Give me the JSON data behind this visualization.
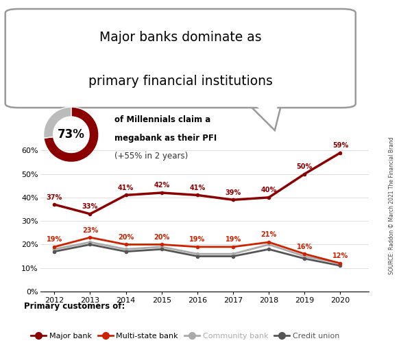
{
  "years": [
    2012,
    2013,
    2014,
    2015,
    2016,
    2017,
    2018,
    2019,
    2020
  ],
  "major_bank": [
    37,
    33,
    41,
    42,
    41,
    39,
    40,
    50,
    59
  ],
  "multi_state_bank": [
    19,
    23,
    20,
    20,
    19,
    19,
    21,
    16,
    12
  ],
  "community_bank": [
    18,
    21,
    18,
    19,
    16,
    16,
    20,
    15,
    12
  ],
  "credit_union": [
    17,
    20,
    17,
    18,
    15,
    15,
    18,
    14,
    11
  ],
  "major_bank_color": "#8B0000",
  "multi_state_bank_color": "#cc2200",
  "community_bank_color": "#aaaaaa",
  "credit_union_color": "#555555",
  "title_line1": "Major banks dominate as",
  "title_line2": "primary financial institutions",
  "pct_73_text": "73%",
  "donut_dark_color": "#8B0000",
  "donut_light_color": "#bbbbbb",
  "ann_line1": "of Millennials claim a",
  "ann_line2": "megabank as their PFI",
  "ann_line3": "(+55% in 2 years)",
  "source_text": "SOURCE: Raddon © March 2021 The Financial Brand",
  "legend_header": "Primary customers of:",
  "legend_label1": "Major bank",
  "legend_label2": "Multi-state bank",
  "legend_label3": "Community bank",
  "legend_label4": "Credit union",
  "ylim": [
    0,
    70
  ],
  "yticks": [
    0,
    10,
    20,
    30,
    40,
    50,
    60
  ],
  "background_color": "#ffffff",
  "bubble_edge_color": "#999999",
  "grid_color": "#e0e0e0"
}
